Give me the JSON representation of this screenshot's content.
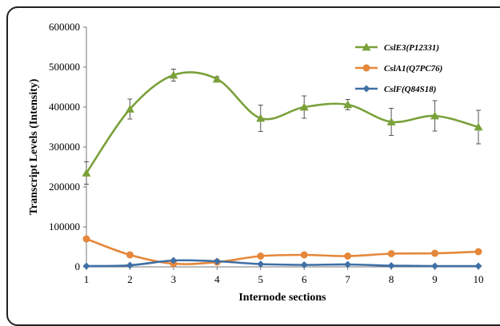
{
  "chart_data": {
    "type": "line",
    "title": "",
    "xlabel": "Internode sections",
    "ylabel": "Transcript Levels (Intensity)",
    "x": [
      1,
      2,
      3,
      4,
      5,
      6,
      7,
      8,
      9,
      10
    ],
    "ylim": [
      0,
      600000
    ],
    "yticks": [
      "0",
      "100000",
      "200000",
      "300000",
      "400000",
      "500000",
      "600000"
    ],
    "ytick_values": [
      0,
      100000,
      200000,
      300000,
      400000,
      500000,
      600000
    ],
    "xticks": [
      "1",
      "2",
      "3",
      "4",
      "5",
      "6",
      "7",
      "8",
      "9",
      "10"
    ],
    "grid": false,
    "legend_position": "top-right",
    "series": [
      {
        "name": "CslE3(P12331)",
        "color": "#7aa13a",
        "marker": "triangle",
        "values": [
          235000,
          395000,
          480000,
          470000,
          372000,
          400000,
          406000,
          363000,
          378000,
          350000
        ],
        "errors": [
          28000,
          25000,
          15000,
          6000,
          33000,
          28000,
          13000,
          34000,
          38000,
          42000
        ]
      },
      {
        "name": "CslA1(Q7PC76)",
        "color": "#e5873a",
        "marker": "circle",
        "values": [
          70000,
          30000,
          8000,
          12000,
          27000,
          30000,
          27000,
          33000,
          34000,
          38000
        ]
      },
      {
        "name": "CslF(Q84S18)",
        "color": "#3f6fa5",
        "marker": "diamond",
        "values": [
          2000,
          4000,
          16000,
          14000,
          7000,
          5000,
          6000,
          3000,
          2000,
          2000
        ]
      }
    ]
  }
}
